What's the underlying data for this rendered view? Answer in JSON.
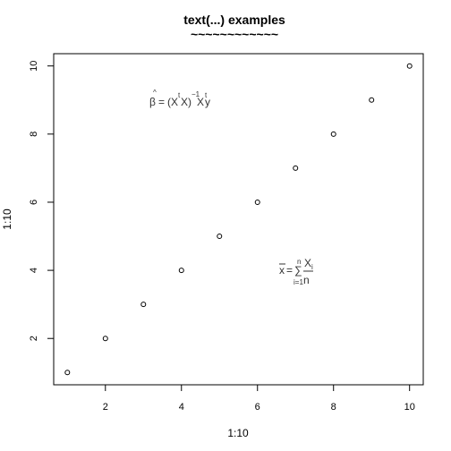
{
  "chart_data": {
    "type": "scatter",
    "title": "text(...) examples",
    "title_underline": "~~~~~~~~~~~~",
    "xlabel": "1:10",
    "ylabel": "1:10",
    "x": [
      1,
      2,
      3,
      4,
      5,
      6,
      7,
      8,
      9,
      10
    ],
    "y": [
      1,
      2,
      3,
      4,
      5,
      6,
      7,
      8,
      9,
      10
    ],
    "xlim": [
      0.64,
      10.36
    ],
    "ylim": [
      0.64,
      10.36
    ],
    "x_ticks": [
      2,
      4,
      6,
      8,
      10
    ],
    "y_ticks": [
      2,
      4,
      6,
      8,
      10
    ],
    "grid": false,
    "marker": "open-circle",
    "annotations": [
      {
        "x": 4,
        "y": 9,
        "parts": {
          "beta": "β",
          "hat": "^",
          "equals": "=",
          "open_paren": "(X",
          "t1": "t",
          "middle": "X)",
          "inv": "−1",
          "x2": "X",
          "t2": "t",
          "y": "y"
        }
      },
      {
        "x": 7,
        "y": 4,
        "parts": {
          "xbar": "x",
          "equals": "=",
          "sigma": "∑",
          "upper": "n",
          "lower": "i=1",
          "numerator": "X",
          "sub_i": "i",
          "denominator": "n"
        }
      }
    ]
  }
}
